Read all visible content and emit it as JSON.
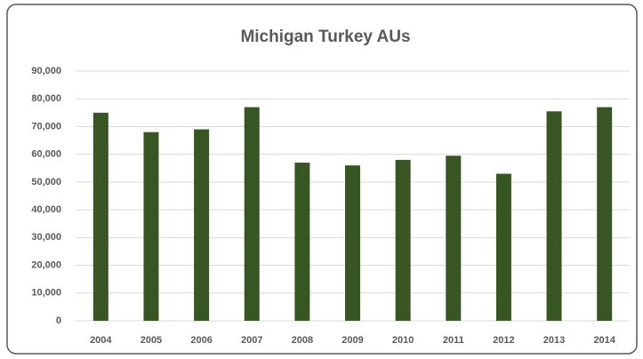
{
  "chart_data": {
    "type": "bar",
    "title": "Michigan Turkey AUs",
    "categories": [
      "2004",
      "2005",
      "2006",
      "2007",
      "2008",
      "2009",
      "2010",
      "2011",
      "2012",
      "2013",
      "2014"
    ],
    "values": [
      75000,
      68000,
      69000,
      77000,
      57000,
      56000,
      58000,
      59500,
      53000,
      75500,
      77000
    ],
    "color": "#375623",
    "ylim": [
      0,
      90000
    ],
    "yticks": [
      0,
      {
        "value": 10000,
        "label": "10,000"
      },
      {
        "value": 20000,
        "label": "20,000"
      },
      {
        "value": 30000,
        "label": "30,000"
      },
      {
        "value": 40000,
        "label": "40,000"
      },
      {
        "value": 50000,
        "label": "50,000"
      },
      {
        "value": 60000,
        "label": "60,000"
      },
      {
        "value": 70000,
        "label": "70,000"
      },
      {
        "value": 80000,
        "label": "80,000"
      },
      {
        "value": 90000,
        "label": "90,000"
      }
    ],
    "grid": true
  }
}
